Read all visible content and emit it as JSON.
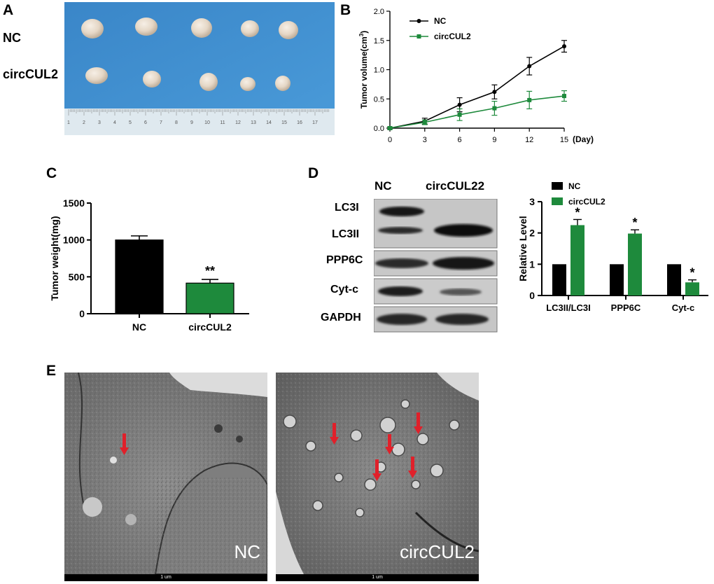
{
  "panels": {
    "A": "A",
    "B": "B",
    "C": "C",
    "D": "D",
    "E": "E"
  },
  "photo": {
    "row_labels": [
      "NC",
      "circCUL2"
    ],
    "ruler_ticks": [
      "1",
      "2",
      "3",
      "4",
      "5",
      "6",
      "7",
      "8",
      "9",
      "10",
      "11",
      "12",
      "13",
      "14",
      "15",
      "16",
      "17"
    ],
    "colors": {
      "background": "#3f8fcf",
      "tumor": "#e8dccd",
      "ruler": "#dfe9ef"
    }
  },
  "western": {
    "columns": [
      "NC",
      "circCUL22"
    ],
    "bands": [
      "LC3I",
      "LC3II",
      "PPP6C",
      "Cyt-c",
      "GAPDH"
    ]
  },
  "em": {
    "captions": [
      "NC",
      "circCUL2"
    ],
    "scale_labels": [
      "1 um",
      "1 um"
    ],
    "arrow_color": "#e0202a"
  },
  "chart_data": [
    {
      "type": "line",
      "ylabel": "Tumor volume(cm3)",
      "xunit": "(Day)",
      "x": [
        0,
        3,
        6,
        9,
        12,
        15
      ],
      "xlim": [
        0,
        15
      ],
      "ylim": [
        0,
        2.0
      ],
      "yticks": [
        0.0,
        0.5,
        1.0,
        1.5,
        2.0
      ],
      "grid": false,
      "legend_position": "top-left",
      "series": [
        {
          "name": "NC",
          "color": "#000000",
          "marker": "circle",
          "values": [
            0,
            0.12,
            0.4,
            0.62,
            1.06,
            1.4
          ],
          "errors": [
            0.02,
            0.05,
            0.12,
            0.12,
            0.15,
            0.1
          ]
        },
        {
          "name": "circCUL2",
          "color": "#1e8a3c",
          "marker": "square",
          "values": [
            0,
            0.1,
            0.23,
            0.34,
            0.48,
            0.55
          ],
          "errors": [
            0.02,
            0.04,
            0.1,
            0.12,
            0.15,
            0.09
          ]
        }
      ]
    },
    {
      "type": "bar",
      "ylabel": "Tumor weight(mg)",
      "categories": [
        "NC",
        "circCUL2"
      ],
      "values": [
        1000,
        415
      ],
      "errors": [
        55,
        50
      ],
      "colors": [
        "#000000",
        "#1e8a3c"
      ],
      "ylim": [
        0,
        1500
      ],
      "yticks": [
        0,
        500,
        1000,
        1500
      ],
      "annotations": [
        "",
        "**"
      ]
    },
    {
      "type": "bar",
      "ylabel": "Relative Level",
      "categories": [
        "LC3II/LC3I",
        "PPP6C",
        "Cyt-c"
      ],
      "legend_position": "top-left",
      "ylim": [
        0,
        3
      ],
      "yticks": [
        0,
        1,
        2,
        3
      ],
      "series": [
        {
          "name": "NC",
          "color": "#000000",
          "values": [
            1,
            1,
            1
          ],
          "errors": [
            0,
            0,
            0
          ]
        },
        {
          "name": "circCUL2",
          "color": "#1e8a3c",
          "values": [
            2.25,
            1.98,
            0.42
          ],
          "errors": [
            0.18,
            0.12,
            0.08
          ]
        }
      ],
      "annotations": [
        "*",
        "*",
        "*"
      ]
    }
  ]
}
